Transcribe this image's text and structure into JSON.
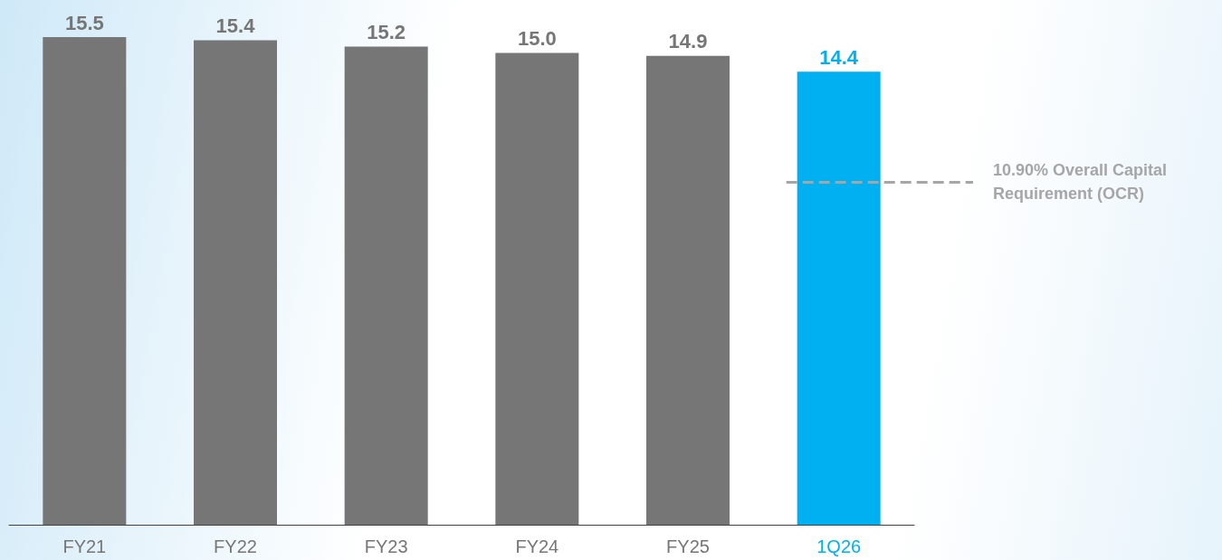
{
  "chart_data": {
    "type": "bar",
    "categories": [
      "FY21",
      "FY22",
      "FY23",
      "FY24",
      "FY25",
      "1Q26"
    ],
    "values": [
      15.5,
      15.4,
      15.2,
      15.0,
      14.9,
      14.4
    ],
    "colors": [
      "#767676",
      "#767676",
      "#767676",
      "#767676",
      "#767676",
      "#00b0f0"
    ],
    "value_labels": [
      "15.5",
      "15.4",
      "15.2",
      "15.0",
      "14.9",
      "14.4"
    ],
    "ref_lines": [
      {
        "axis": "y",
        "value": 10.9,
        "label": "10.90% Overall Capital Requirement (OCR)",
        "color": "#a6a6a6",
        "line_style": "dashed"
      }
    ]
  }
}
